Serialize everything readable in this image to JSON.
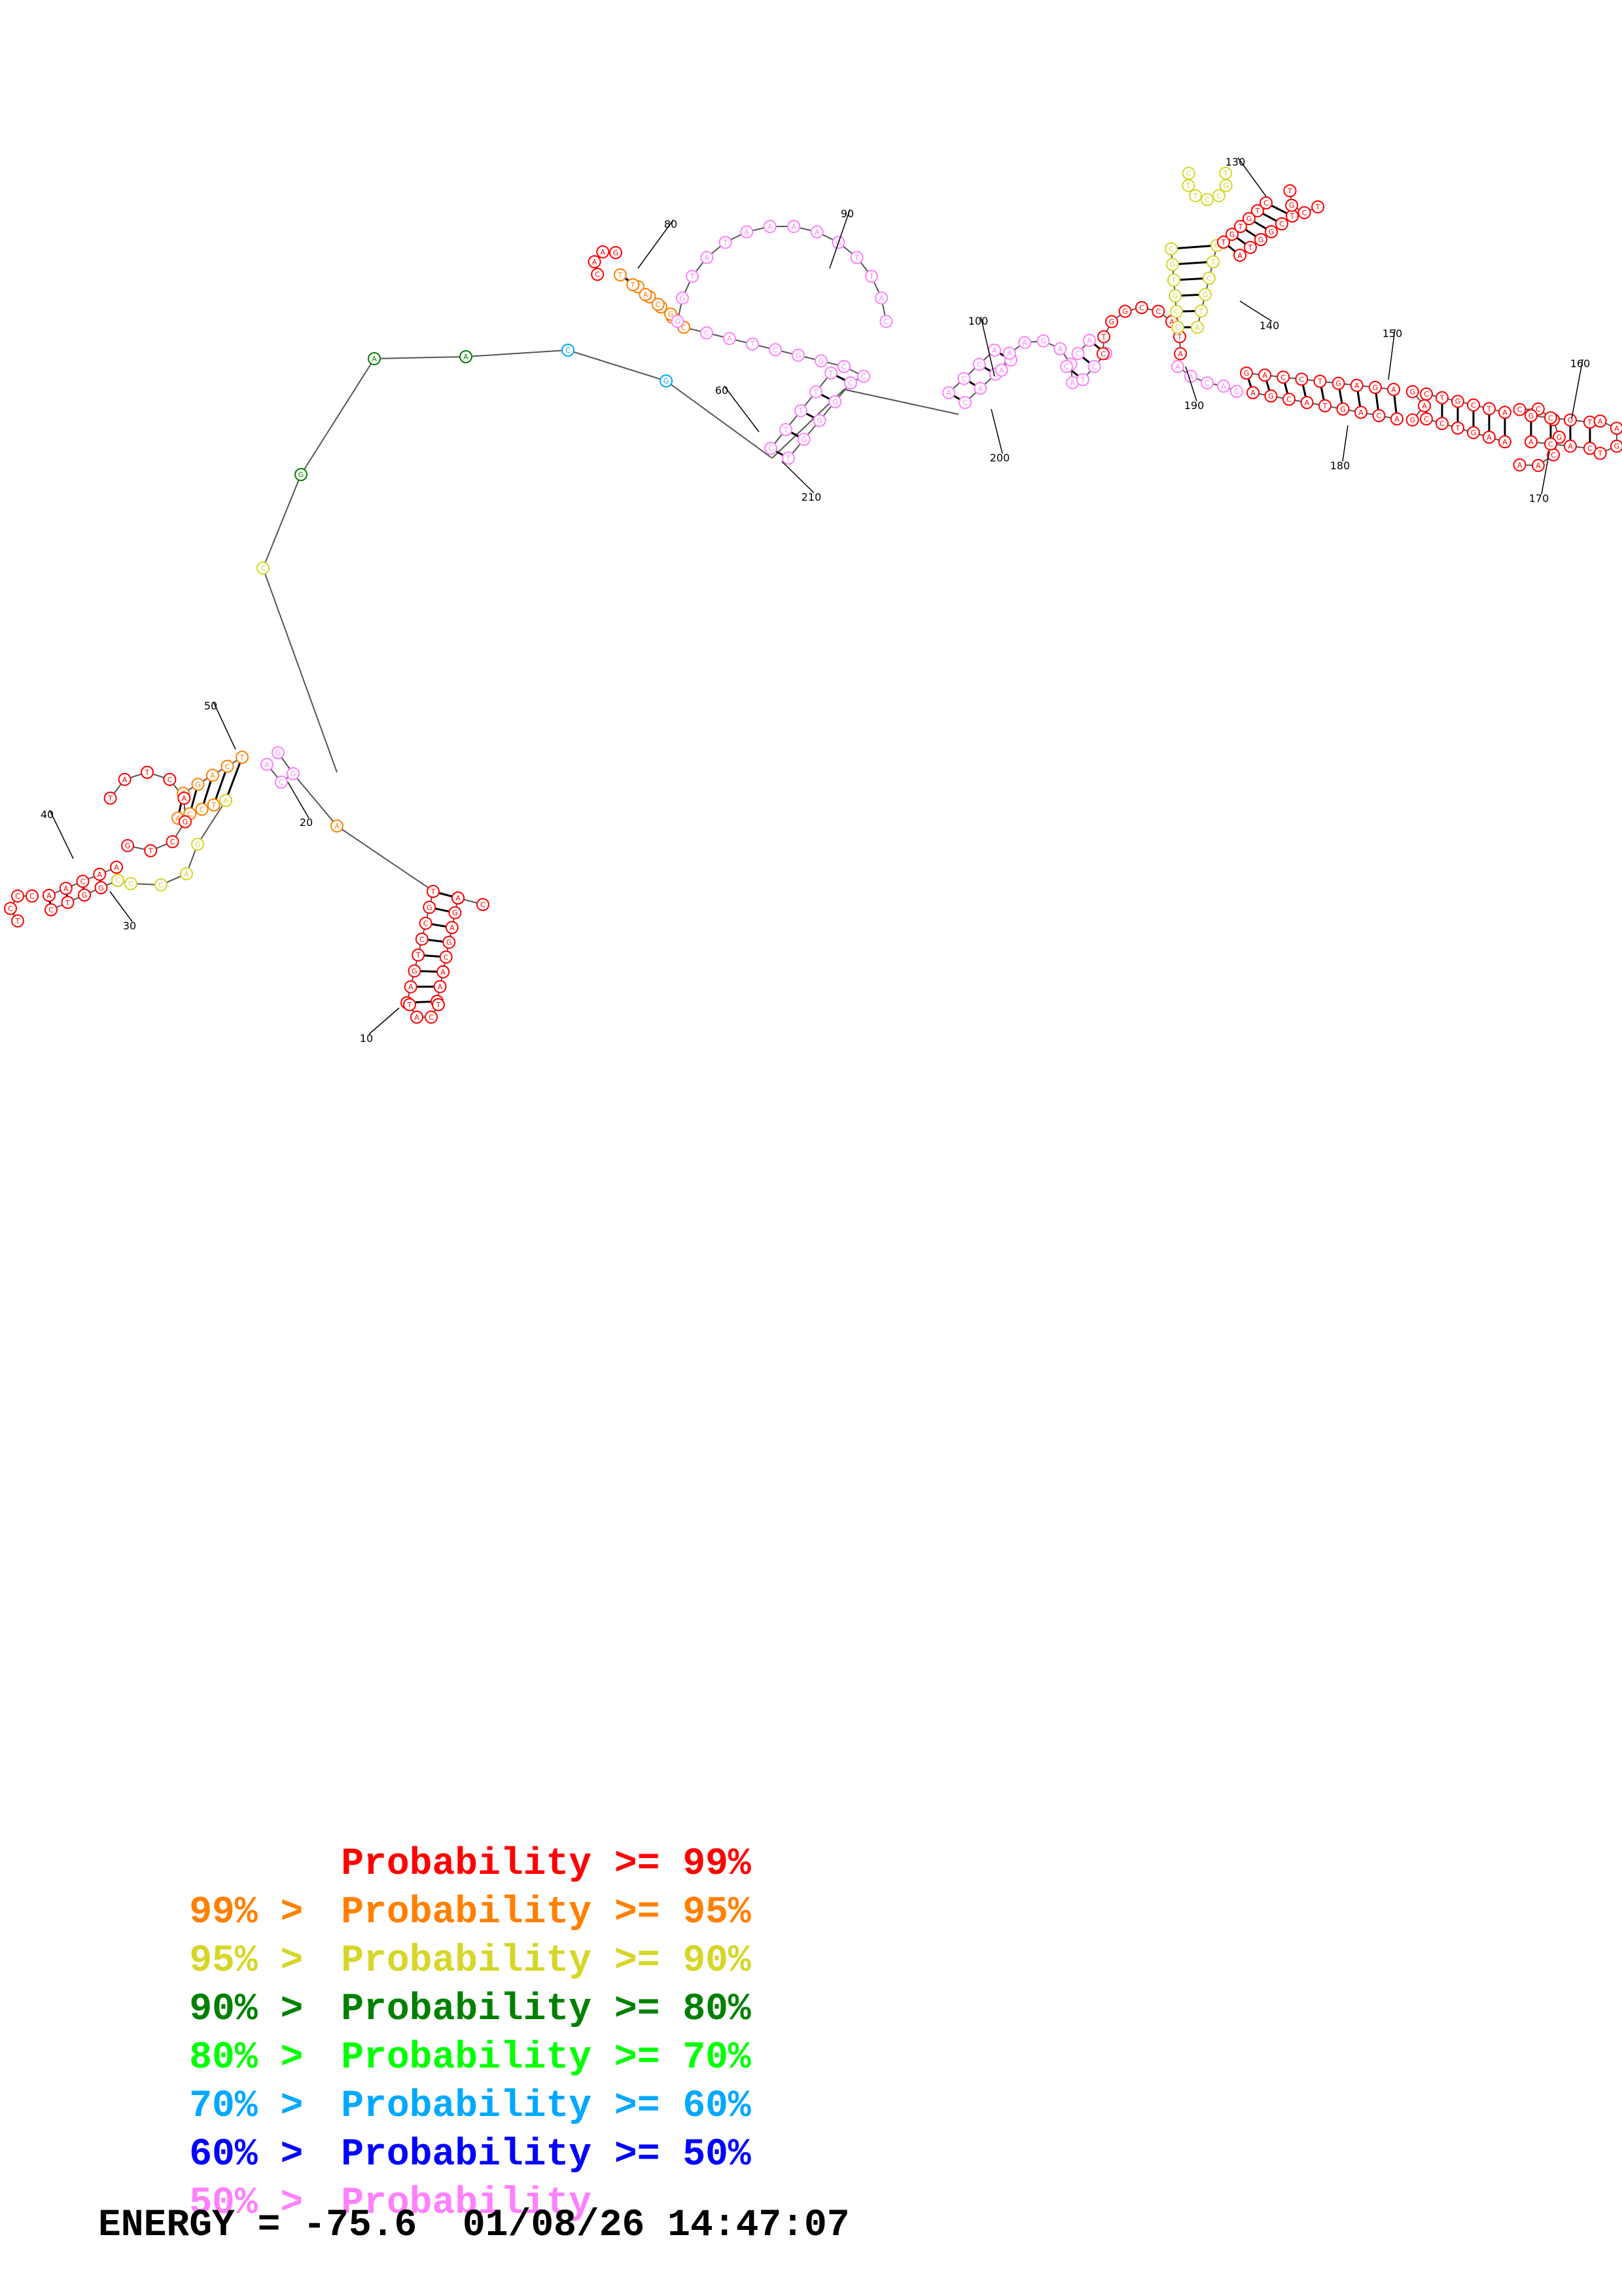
{
  "diagram": {
    "index_labels": [
      "10",
      "20",
      "30",
      "40",
      "50",
      "60",
      "80",
      "90",
      "100",
      "130",
      "140",
      "150",
      "160",
      "170",
      "180",
      "190",
      "200",
      "210"
    ],
    "colors": {
      "p99": "#ff0000",
      "p95": "#ff8000",
      "p90": "#d6d62a",
      "p80": "#008000",
      "p70": "#00ff00",
      "p60": "#00a8ff",
      "p50": "#0000ff",
      "low": "#ff80ff",
      "backbone": "#555555",
      "pair": "#000000"
    },
    "nucleotide_letters": [
      "A",
      "C",
      "G",
      "T"
    ]
  },
  "legend": [
    {
      "left": "",
      "right": "Probability >= 99%",
      "color": "#ff0000"
    },
    {
      "left": "99% >",
      "right": "Probability >= 95%",
      "color": "#ff8000"
    },
    {
      "left": "95% >",
      "right": "Probability >= 90%",
      "color": "#d6d62a"
    },
    {
      "left": "90% >",
      "right": "Probability >= 80%",
      "color": "#008000"
    },
    {
      "left": "80% >",
      "right": "Probability >= 70%",
      "color": "#00ff00"
    },
    {
      "left": "70% >",
      "right": "Probability >= 60%",
      "color": "#00a8ff"
    },
    {
      "left": "60% >",
      "right": "Probability >= 50%",
      "color": "#0000ff"
    },
    {
      "left": "50% >",
      "right": "Probability",
      "color": "#ff80ff"
    }
  ],
  "footer": {
    "energy": "ENERGY = -75.6",
    "timestamp": "01/08/26 14:47:07"
  }
}
